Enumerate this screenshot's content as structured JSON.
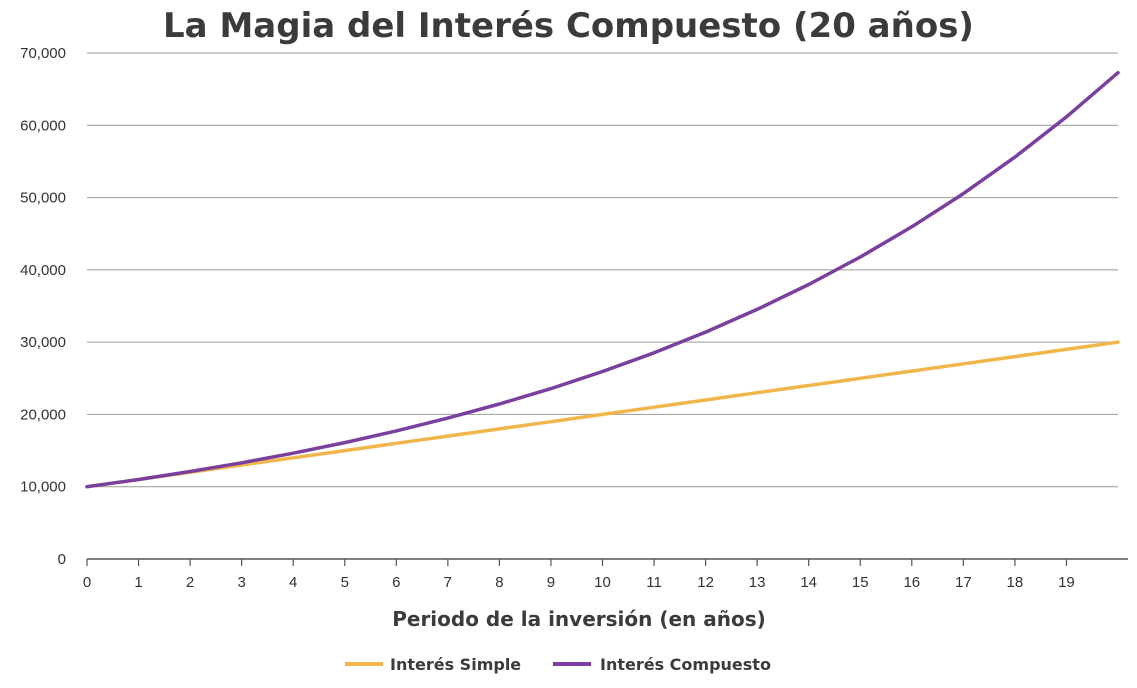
{
  "chart_data": {
    "type": "line",
    "title": "La Magia del Interés Compuesto (20 años)",
    "xlabel": "Periodo de la inversión (en años)",
    "ylabel": "",
    "x_ticks": [
      0,
      1,
      2,
      3,
      4,
      5,
      6,
      7,
      8,
      9,
      10,
      11,
      12,
      13,
      14,
      15,
      16,
      17,
      18,
      19
    ],
    "y_ticks": [
      0,
      10000,
      20000,
      30000,
      40000,
      50000,
      60000,
      70000
    ],
    "y_tick_labels": [
      "0",
      "10,000",
      "20,000",
      "30,000",
      "40,000",
      "50,000",
      "60,000",
      "70,000"
    ],
    "xlim": [
      0,
      20
    ],
    "ylim": [
      0,
      70000
    ],
    "grid": "horizontal",
    "legend_position": "bottom",
    "x": [
      0,
      1,
      2,
      3,
      4,
      5,
      6,
      7,
      8,
      9,
      10,
      11,
      12,
      13,
      14,
      15,
      16,
      17,
      18,
      19,
      20
    ],
    "series": [
      {
        "name": "Interés Simple",
        "color": "#f0b64c",
        "values": [
          10000,
          11000,
          12000,
          13000,
          14000,
          15000,
          16000,
          17000,
          18000,
          19000,
          20000,
          21000,
          22000,
          23000,
          24000,
          25000,
          26000,
          27000,
          28000,
          29000,
          30000
        ]
      },
      {
        "name": "Interés Compuesto",
        "color": "#7b3f9e",
        "values": [
          10000,
          11000,
          12100,
          13310,
          14641,
          16105,
          17716,
          19487,
          21436,
          23579,
          25937,
          28531,
          31384,
          34523,
          37975,
          41772,
          45950,
          50545,
          55599,
          61159,
          67275
        ]
      }
    ]
  }
}
